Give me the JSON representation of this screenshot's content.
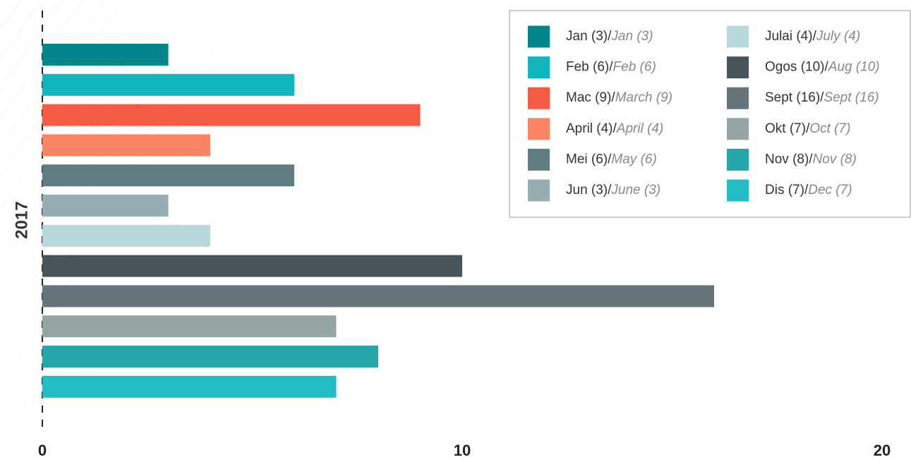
{
  "chart_data": {
    "type": "bar",
    "orientation": "horizontal",
    "y_label": "2017",
    "xlim": [
      0,
      20
    ],
    "xticks": [
      0,
      10,
      20
    ],
    "legend_separator": "/",
    "legend": "top-right",
    "series": [
      {
        "name": "Jan (3)",
        "name_en": "Jan (3)",
        "color": "#00868b",
        "values": [
          3
        ]
      },
      {
        "name": "Feb (6)",
        "name_en": "Feb (6)",
        "color": "#13b5bd",
        "values": [
          6
        ]
      },
      {
        "name": "Mac (9)",
        "name_en": "March (9)",
        "color": "#f45b45",
        "values": [
          9
        ]
      },
      {
        "name": "April (4)",
        "name_en": "April (4)",
        "color": "#fd8566",
        "values": [
          4
        ]
      },
      {
        "name": "Mei (6)",
        "name_en": "May (6)",
        "color": "#607d83",
        "values": [
          6
        ]
      },
      {
        "name": "Jun (3)",
        "name_en": "June (3)",
        "color": "#96adb1",
        "values": [
          3
        ]
      },
      {
        "name": "Julai (4)",
        "name_en": "July (4)",
        "color": "#b8d7dc",
        "values": [
          4
        ]
      },
      {
        "name": "Ogos (10)",
        "name_en": "Aug (10)",
        "color": "#475559",
        "values": [
          10
        ]
      },
      {
        "name": "Sept (16)",
        "name_en": "Sept (16)",
        "color": "#657579",
        "values": [
          16
        ]
      },
      {
        "name": "Okt (7)",
        "name_en": "Oct (7)",
        "color": "#95a5a6",
        "values": [
          7
        ]
      },
      {
        "name": "Nov (8)",
        "name_en": "Nov (8)",
        "color": "#26a6a9",
        "values": [
          8
        ]
      },
      {
        "name": "Dis (7)",
        "name_en": "Dec (7)",
        "color": "#22bcc4",
        "values": [
          7
        ]
      }
    ]
  }
}
